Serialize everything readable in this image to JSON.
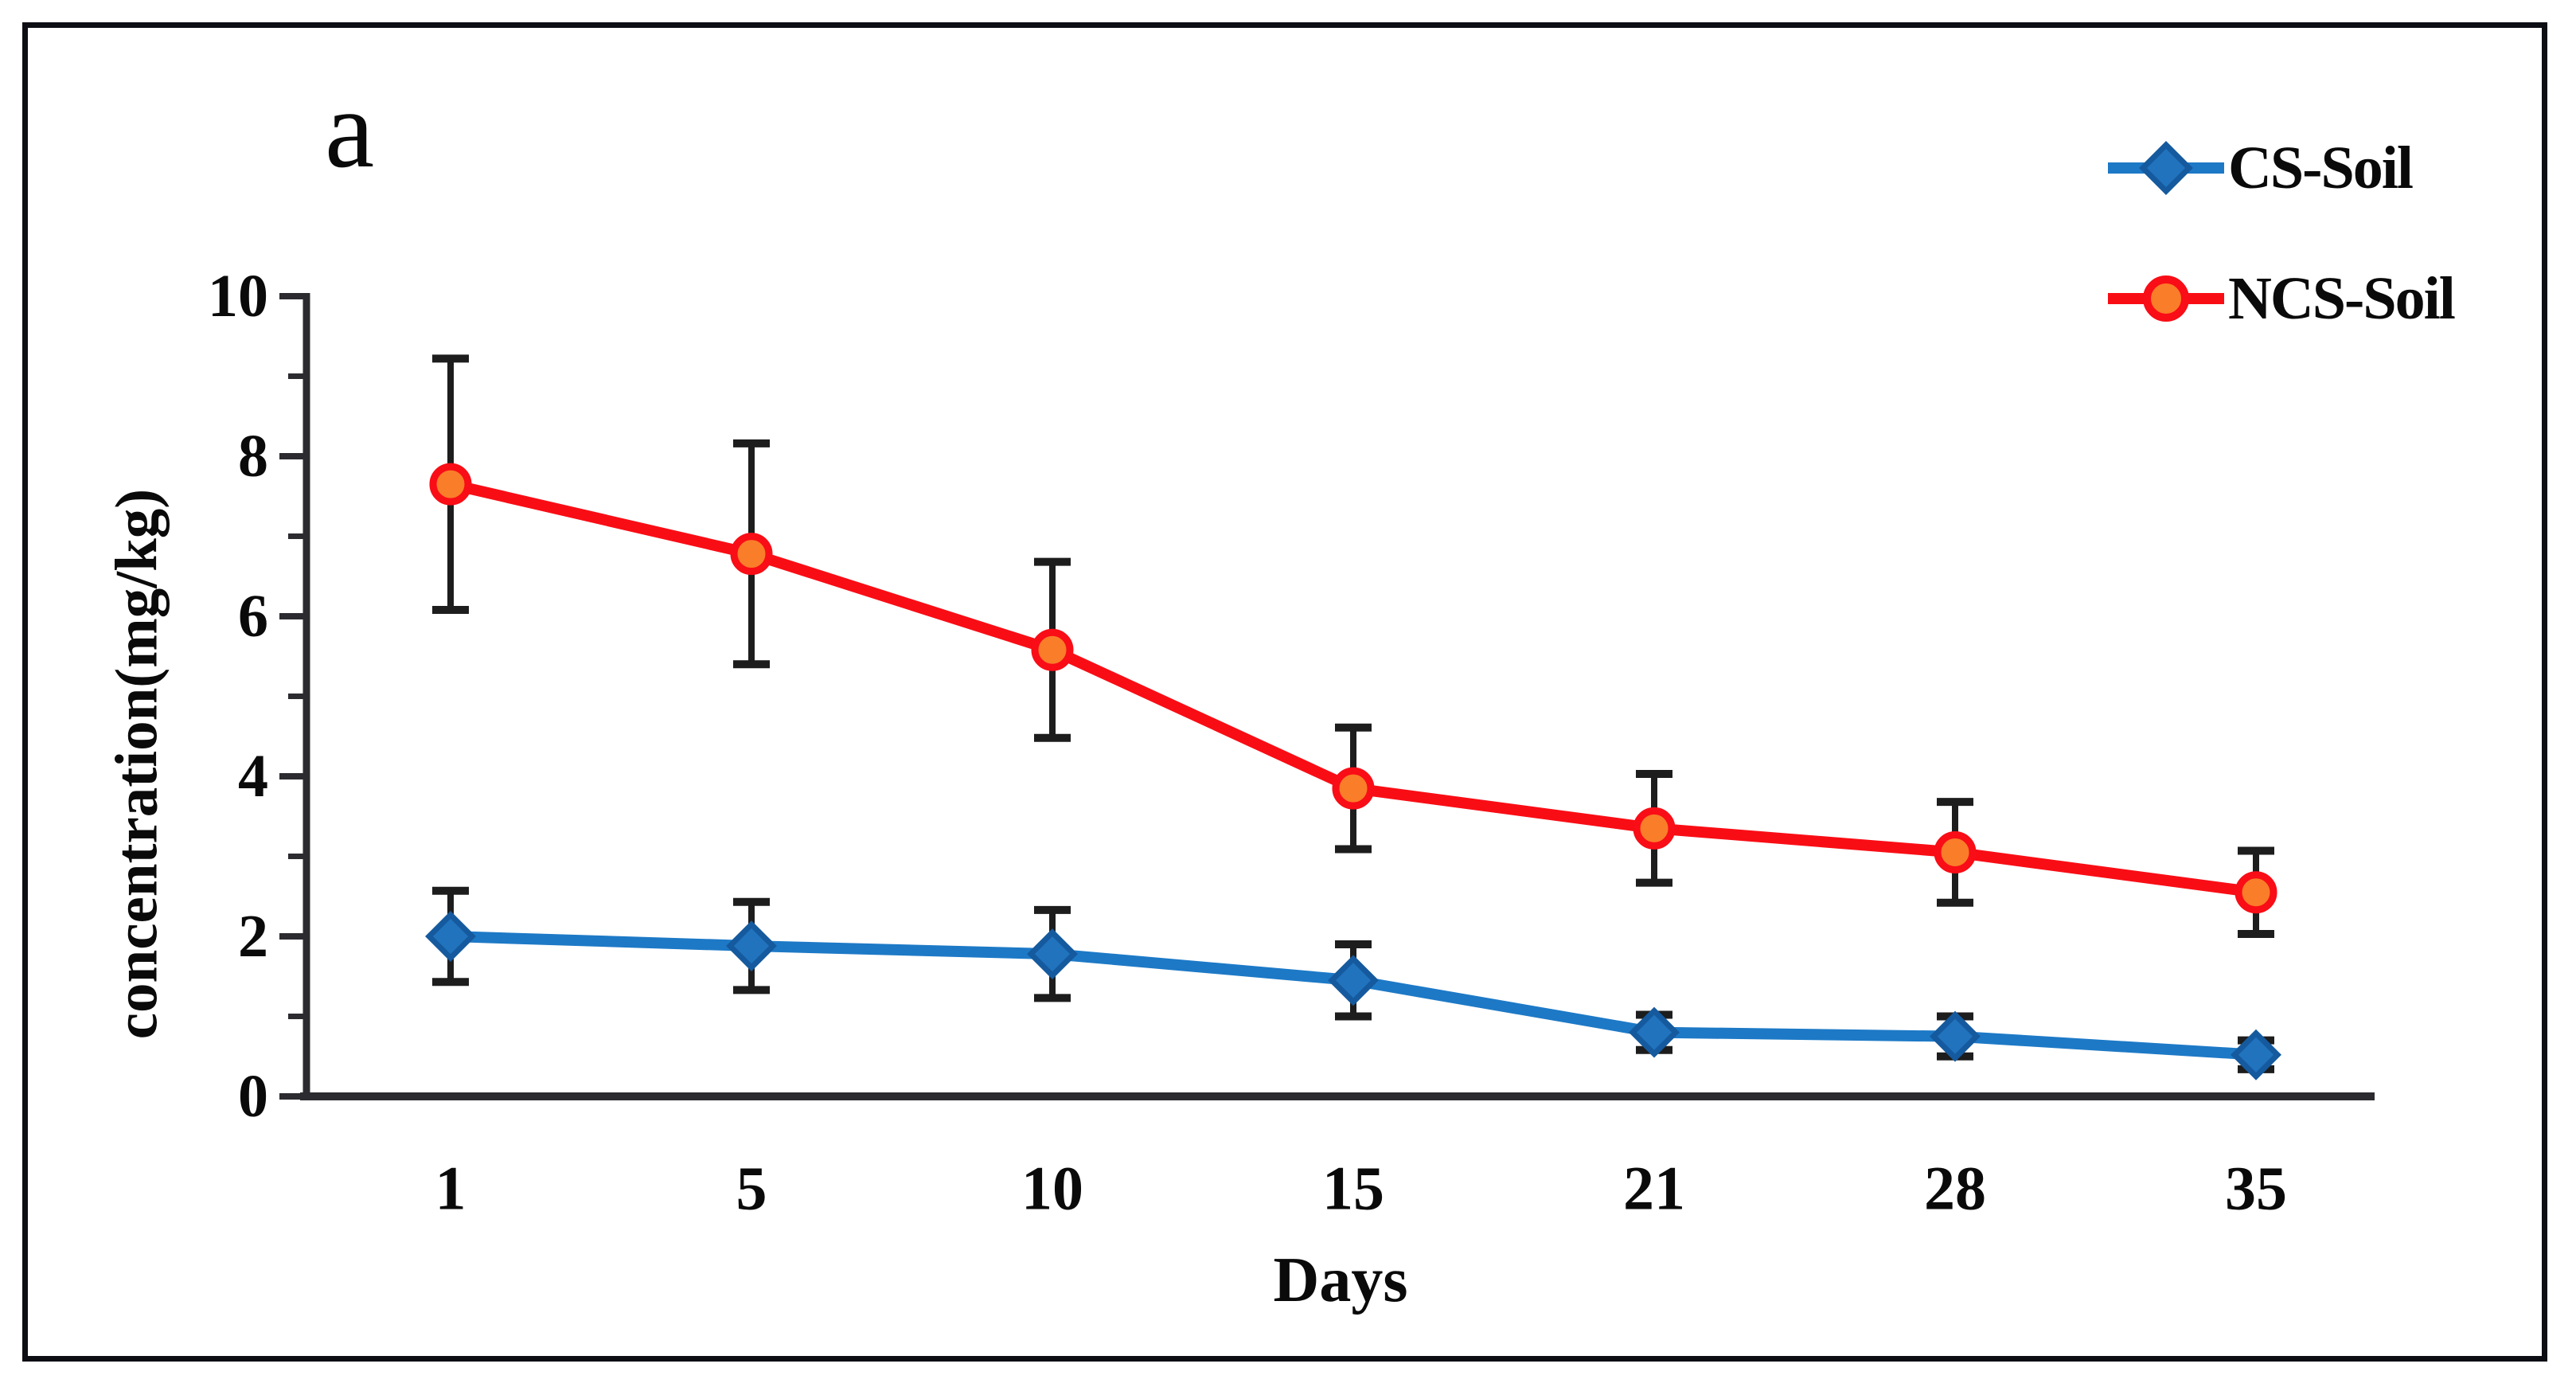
{
  "panel_label": "a",
  "colors": {
    "axis": "#2b2b30",
    "error_bar": "#1d1d1d",
    "text": "#0a0a0a",
    "border": "#0d0d14",
    "cs_line": "#1d79c6",
    "cs_marker_fill": "#2173bd",
    "cs_marker_stroke": "#155a9e",
    "ncs_line": "#f90d15",
    "ncs_marker_fill": "#fa7d2a",
    "ncs_marker_stroke": "#f90d16"
  },
  "legend": {
    "position": "top-right",
    "items": [
      {
        "label": "CS-Soil"
      },
      {
        "label": "NCS-Soil"
      }
    ]
  },
  "chart_data": {
    "type": "line",
    "title": "",
    "panel": "a",
    "xlabel": "Days",
    "ylabel": "concentration(mg/kg)",
    "categories": [
      "1",
      "5",
      "10",
      "15",
      "21",
      "28",
      "35"
    ],
    "ylim": [
      0,
      10
    ],
    "yticks_major": [
      0,
      2,
      4,
      6,
      8,
      10
    ],
    "yticks_minor": [
      1,
      3,
      5,
      7,
      9
    ],
    "grid": false,
    "legend_position": "top-right",
    "error_bars": true,
    "series": [
      {
        "name": "CS-Soil",
        "marker": "diamond",
        "color_key": "cs",
        "values": [
          2.0,
          1.88,
          1.78,
          1.45,
          0.8,
          0.75,
          0.52
        ],
        "errors": [
          0.57,
          0.55,
          0.55,
          0.45,
          0.22,
          0.25,
          0.18
        ]
      },
      {
        "name": "NCS-Soil",
        "marker": "circle",
        "color_key": "ncs",
        "values": [
          7.65,
          6.78,
          5.58,
          3.85,
          3.35,
          3.05,
          2.55
        ],
        "errors": [
          1.57,
          1.38,
          1.1,
          0.76,
          0.68,
          0.63,
          0.52
        ]
      }
    ]
  }
}
